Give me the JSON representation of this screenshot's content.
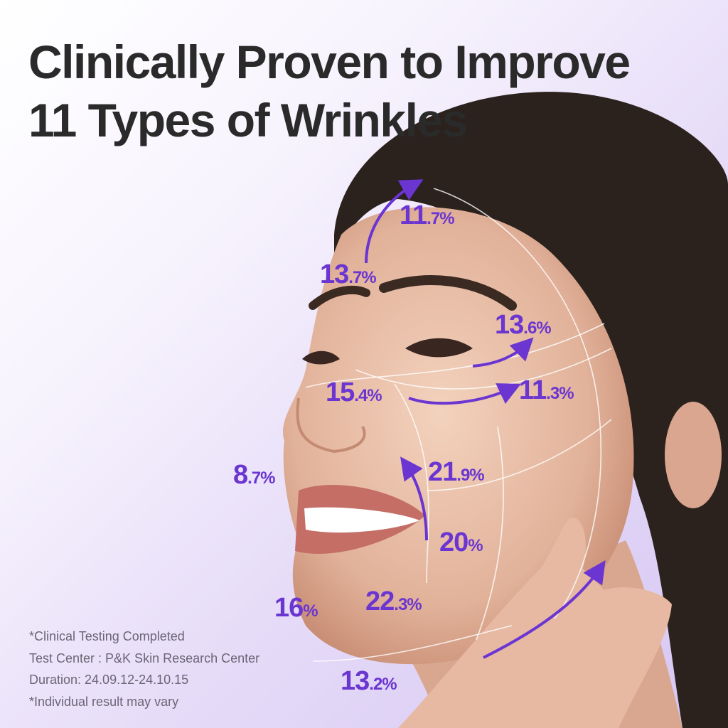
{
  "title": {
    "line1": "Clinically Proven to Improve",
    "line2": "11 Types of Wrinkles"
  },
  "accent_color": "#6a35d0",
  "labels": [
    {
      "main": "11",
      "suffix": ".7%"
    },
    {
      "main": "13",
      "suffix": ".7%"
    },
    {
      "main": "13",
      "suffix": ".6%"
    },
    {
      "main": "11",
      "suffix": ".3%"
    },
    {
      "main": "15",
      "suffix": ".4%"
    },
    {
      "main": "8",
      "suffix": ".7%"
    },
    {
      "main": "21",
      "suffix": ".9%"
    },
    {
      "main": "20",
      "suffix": "%"
    },
    {
      "main": "16",
      "suffix": "%"
    },
    {
      "main": "22",
      "suffix": ".3%"
    },
    {
      "main": "13",
      "suffix": ".2%"
    }
  ],
  "notes": [
    "*Clinical Testing Completed",
    "Test Center : P&K Skin Research Center",
    "Duration: 24.09.12-24.10.15",
    "*Individual result may vary"
  ]
}
